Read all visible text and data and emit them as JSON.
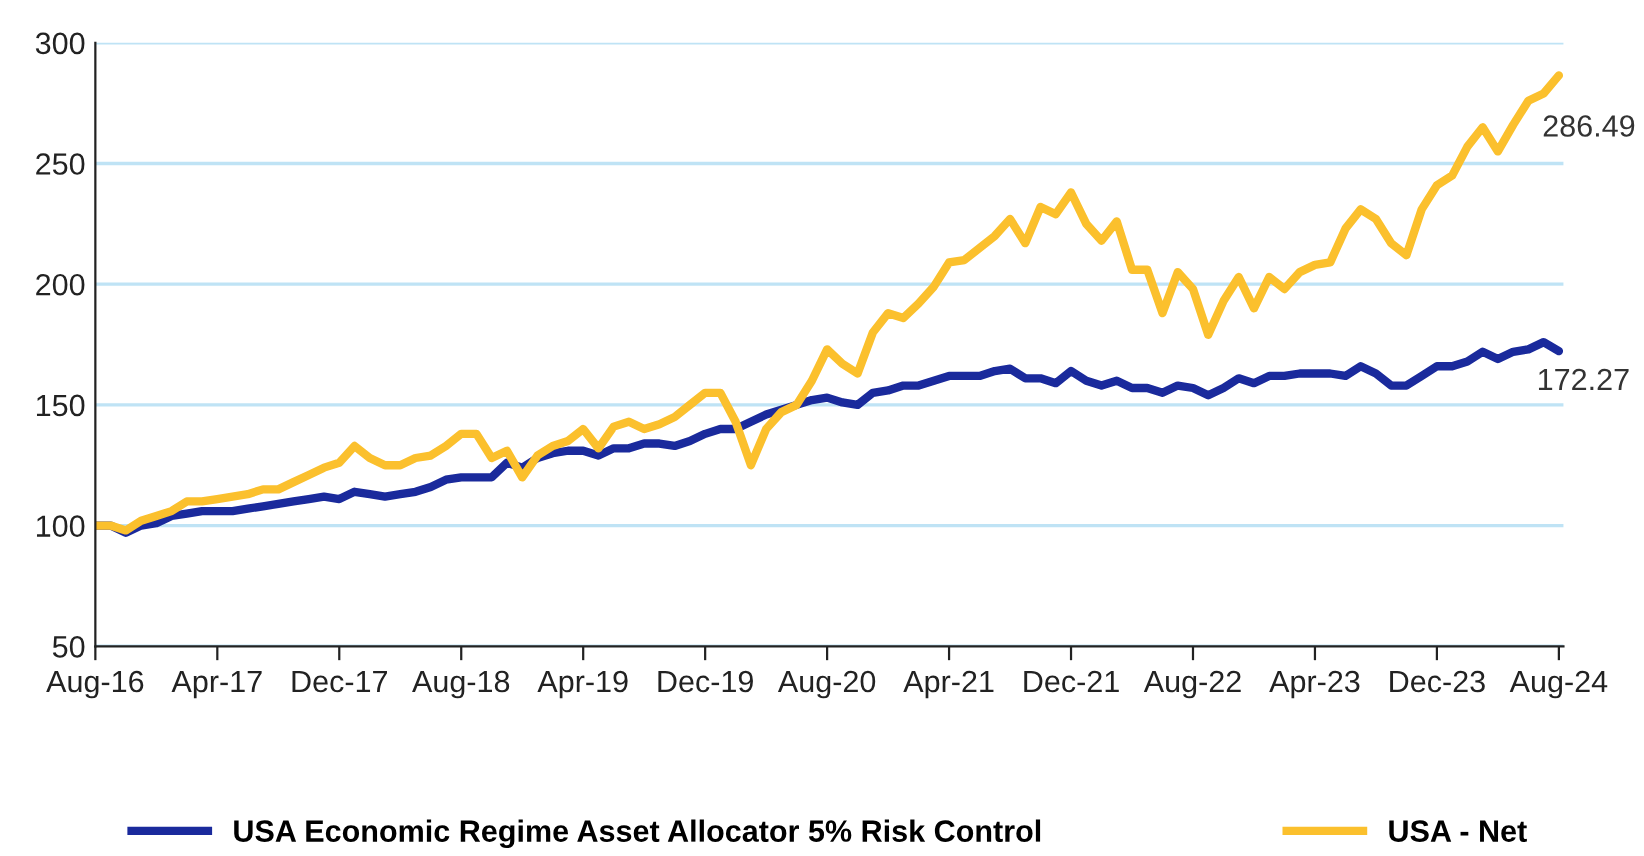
{
  "chart_data": {
    "type": "line",
    "categories": [
      "Aug-16",
      null,
      null,
      null,
      null,
      null,
      null,
      null,
      "Apr-17",
      null,
      null,
      null,
      null,
      null,
      null,
      null,
      "Dec-17",
      null,
      null,
      null,
      null,
      null,
      null,
      null,
      "Aug-18",
      null,
      null,
      null,
      null,
      null,
      null,
      null,
      "Apr-19",
      null,
      null,
      null,
      null,
      null,
      null,
      null,
      "Dec-19",
      null,
      null,
      null,
      null,
      null,
      null,
      null,
      "Aug-20",
      null,
      null,
      null,
      null,
      null,
      null,
      null,
      "Apr-21",
      null,
      null,
      null,
      null,
      null,
      null,
      null,
      "Dec-21",
      null,
      null,
      null,
      null,
      null,
      null,
      null,
      "Aug-22",
      null,
      null,
      null,
      null,
      null,
      null,
      null,
      "Apr-23",
      null,
      null,
      null,
      null,
      null,
      null,
      null,
      "Dec-23",
      null,
      null,
      null,
      null,
      null,
      null,
      null,
      "Aug-24"
    ],
    "series": [
      {
        "name": "USA Economic Regime Asset Allocator 5% Risk Control",
        "color": "#1a2a9c",
        "values": [
          100,
          100,
          97,
          100,
          101,
          104,
          105,
          106,
          106,
          106,
          107,
          108,
          109,
          110,
          111,
          112,
          111,
          114,
          113,
          112,
          113,
          114,
          116,
          119,
          120,
          120,
          120,
          126,
          124,
          128,
          130,
          131,
          131,
          129,
          132,
          132,
          134,
          134,
          133,
          135,
          138,
          140,
          140,
          143,
          146,
          148,
          150,
          152,
          153,
          151,
          150,
          155,
          156,
          158,
          158,
          160,
          162,
          162,
          162,
          164,
          165,
          161,
          161,
          159,
          164,
          160,
          158,
          160,
          157,
          157,
          155,
          158,
          157,
          154,
          157,
          161,
          159,
          162,
          162,
          163,
          163,
          163,
          162,
          166,
          163,
          158,
          158,
          162,
          166,
          166,
          168,
          172,
          169,
          172,
          173,
          176,
          172.27
        ]
      },
      {
        "name": "USA - Net",
        "color": "#fbc02d",
        "values": [
          100,
          100,
          98,
          102,
          104,
          106,
          110,
          110,
          111,
          112,
          113,
          115,
          115,
          118,
          121,
          124,
          126,
          133,
          128,
          125,
          125,
          128,
          129,
          133,
          138,
          138,
          128,
          131,
          120,
          129,
          133,
          135,
          140,
          132,
          141,
          143,
          140,
          142,
          145,
          150,
          155,
          155,
          143,
          125,
          140,
          147,
          150,
          160,
          173,
          167,
          163,
          180,
          188,
          186,
          192,
          199,
          209,
          210,
          215,
          220,
          227,
          217,
          232,
          229,
          238,
          225,
          218,
          226,
          206,
          206,
          188,
          205,
          198,
          179,
          193,
          203,
          190,
          203,
          198,
          205,
          208,
          209,
          223,
          231,
          227,
          217,
          212,
          231,
          241,
          245,
          257,
          265,
          255,
          266,
          276,
          279,
          286.49
        ]
      }
    ],
    "annotations": [
      {
        "text": "286.49",
        "x": "Aug-24",
        "y": 286.49
      },
      {
        "text": "172.27",
        "x": "Aug-24",
        "y": 172.27
      }
    ],
    "ylim": [
      50,
      300
    ],
    "yticks": [
      50,
      100,
      150,
      200,
      250,
      300
    ],
    "grid": "y",
    "legend": "bottom",
    "marker": "none",
    "line_style": "solid"
  }
}
